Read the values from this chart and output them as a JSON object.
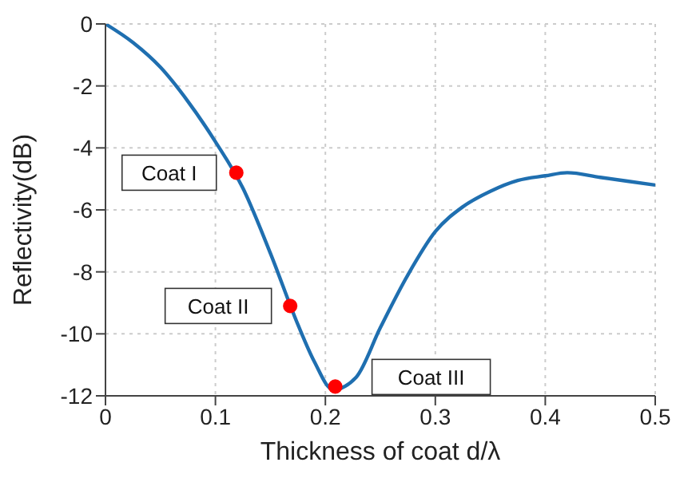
{
  "chart_data": {
    "type": "line",
    "xlabel": "Thickness of coat d/λ",
    "ylabel": "Reflectivity(dB)",
    "xlim": [
      0,
      0.5
    ],
    "ylim": [
      -12,
      0
    ],
    "xticks": [
      0,
      0.1,
      0.2,
      0.3,
      0.4,
      0.5
    ],
    "yticks": [
      -12,
      -10,
      -8,
      -6,
      -4,
      -2,
      0
    ],
    "grid": true,
    "legend": false,
    "series": [
      {
        "color": "#1f6fb0",
        "marker": "none",
        "x": [
          0,
          0.025,
          0.05,
          0.075,
          0.1,
          0.125,
          0.15,
          0.175,
          0.19,
          0.207,
          0.228,
          0.25,
          0.275,
          0.3,
          0.325,
          0.35,
          0.375,
          0.4,
          0.42,
          0.45,
          0.5
        ],
        "values": [
          0,
          -0.6,
          -1.4,
          -2.5,
          -3.8,
          -5.3,
          -7.4,
          -9.7,
          -10.9,
          -11.8,
          -11.4,
          -9.8,
          -8.1,
          -6.7,
          -5.9,
          -5.4,
          -5.05,
          -4.9,
          -4.8,
          -4.95,
          -5.2
        ]
      },
      {
        "type": "scatter",
        "color": "#ff0000",
        "marker": "circle",
        "x": [
          0.119,
          0.168,
          0.209
        ],
        "values": [
          -4.8,
          -9.1,
          -11.7
        ]
      }
    ],
    "annotations": [
      "Coat I",
      "Coat II",
      "Coat III"
    ]
  }
}
